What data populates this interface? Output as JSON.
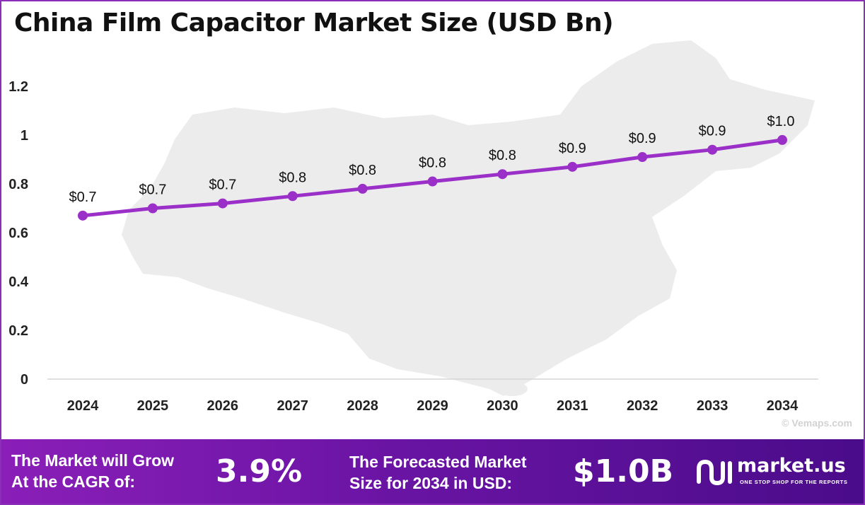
{
  "title": "China Film Capacitor Market Size (USD Bn)",
  "watermark": "© Vemaps.com",
  "colors": {
    "line": "#9b30c8",
    "accent": "#7b1fb0",
    "map": "#ececec",
    "frame": "#8a2fb8"
  },
  "chart_data": {
    "type": "line",
    "title": "China Film Capacitor Market Size (USD Bn)",
    "xlabel": "",
    "ylabel": "",
    "categories": [
      "2024",
      "2025",
      "2026",
      "2027",
      "2028",
      "2029",
      "2030",
      "2031",
      "2032",
      "2033",
      "2034"
    ],
    "series": [
      {
        "values": [
          0.67,
          0.7,
          0.72,
          0.75,
          0.78,
          0.81,
          0.84,
          0.87,
          0.91,
          0.94,
          0.98
        ]
      }
    ],
    "data_labels": [
      "$0.7",
      "$0.7",
      "$0.7",
      "$0.8",
      "$0.8",
      "$0.8",
      "$0.8",
      "$0.9",
      "$0.9",
      "$0.9",
      "$1.0"
    ],
    "yticks": [
      "0",
      "0.2",
      "0.4",
      "0.6",
      "0.8",
      "1",
      "1.2"
    ],
    "ylim": [
      0,
      1.2
    ],
    "grid": false,
    "legend": "none"
  },
  "footer": {
    "cagr_label": "The Market will Grow\nAt the CAGR of:",
    "cagr_value": "3.9%",
    "forecast_label": "The Forecasted Market\nSize for 2034 in USD:",
    "forecast_value": "$1.0B",
    "brand_name": "market.us",
    "brand_tagline": "ONE STOP SHOP FOR THE REPORTS"
  }
}
